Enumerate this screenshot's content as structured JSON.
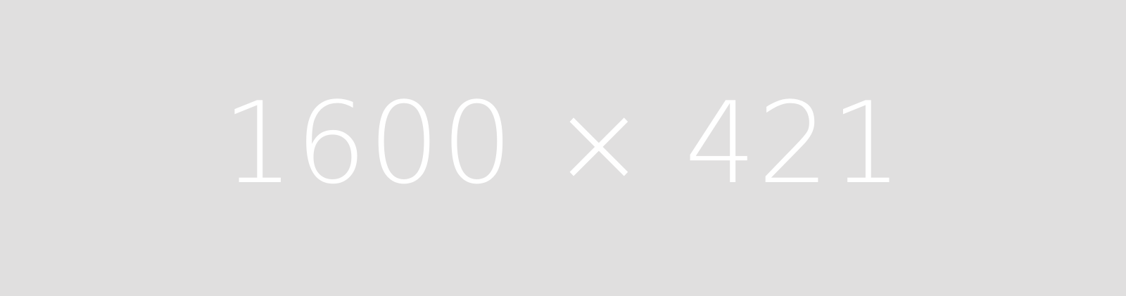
{
  "placeholder": {
    "text": "1600 × 421",
    "background_color": "#e0dfdf",
    "text_color": "#ffffff"
  }
}
